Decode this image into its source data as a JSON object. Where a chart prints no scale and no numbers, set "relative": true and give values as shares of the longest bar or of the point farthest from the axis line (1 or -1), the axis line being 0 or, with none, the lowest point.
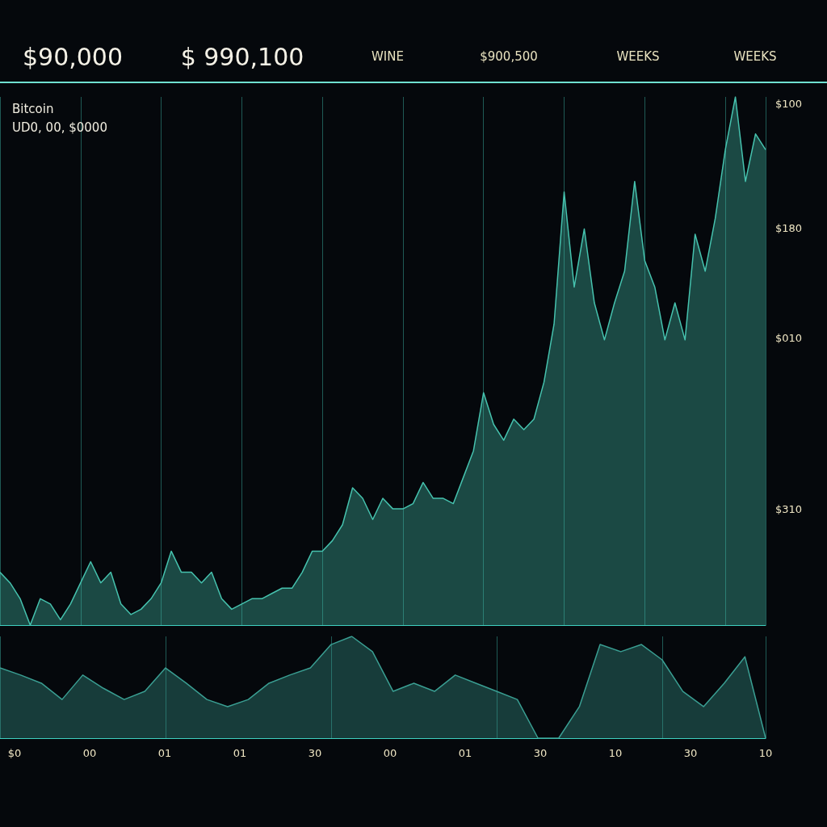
{
  "chart_data": [
    {
      "type": "area",
      "title": "Bitcoin",
      "subtitle": "UD0, 00, $0000",
      "relative": true,
      "grid": "x",
      "annotations": [
        "$90,000",
        "$ 990,100",
        "WINE",
        "$900,500",
        "WEEKS",
        "WEEKS",
        "$100",
        "$180",
        "$010",
        "$310"
      ],
      "categories": [
        null,
        null,
        null,
        null,
        null,
        null,
        null,
        null,
        null,
        null,
        null,
        null,
        null,
        null,
        null,
        null,
        null,
        null,
        null,
        null,
        null,
        null,
        null,
        null,
        null,
        null,
        null,
        null,
        null,
        null,
        null,
        null,
        null,
        null,
        null,
        null,
        null,
        null,
        null,
        null,
        null,
        null,
        null,
        null,
        null,
        null,
        null,
        null,
        null,
        null,
        null,
        null,
        null,
        null,
        null,
        null,
        null,
        null,
        null,
        null,
        null,
        null,
        null,
        null,
        null,
        null,
        null,
        null,
        null,
        null,
        null,
        null,
        null,
        null,
        null,
        null,
        null
      ],
      "series": [
        {
          "color": "#46c2ae",
          "values": [
            0.1,
            0.08,
            0.05,
            0,
            0.05,
            0.04,
            0.01,
            0.04,
            0.08,
            0.12,
            0.08,
            0.1,
            0.04,
            0.02,
            0.03,
            0.05,
            0.08,
            0.14,
            0.1,
            0.1,
            0.08,
            0.1,
            0.05,
            0.03,
            0.04,
            0.05,
            0.05,
            0.06,
            0.07,
            0.07,
            0.1,
            0.14,
            0.14,
            0.16,
            0.19,
            0.26,
            0.24,
            0.2,
            0.24,
            0.22,
            0.22,
            0.23,
            0.27,
            0.24,
            0.24,
            0.23,
            0.28,
            0.33,
            0.44,
            0.38,
            0.35,
            0.39,
            0.37,
            0.39,
            0.46,
            0.57,
            0.82,
            0.64,
            0.75,
            0.61,
            0.54,
            0.61,
            0.67,
            0.84,
            0.69,
            0.64,
            0.54,
            0.61,
            0.54,
            0.74,
            0.67,
            0.77,
            0.9,
            1,
            0.84,
            0.93,
            0.9
          ]
        }
      ]
    },
    {
      "type": "area",
      "relative": true,
      "grid": "x",
      "annotations": [
        "$0",
        "00",
        "01",
        "01",
        "30",
        "00",
        "01",
        "30",
        "10",
        "30",
        "10"
      ],
      "categories": [
        null,
        null,
        null,
        null,
        null,
        null,
        null,
        null,
        null,
        null,
        null,
        null,
        null,
        null,
        null,
        null,
        null,
        null,
        null,
        null,
        null,
        null,
        null,
        null,
        null,
        null,
        null,
        null,
        null,
        null,
        null,
        null,
        null,
        null,
        null,
        null,
        null,
        null
      ],
      "series": [
        {
          "color": "#3a9e92",
          "values": [
            0.69,
            0.62,
            0.54,
            0.38,
            0.62,
            0.49,
            0.38,
            0.46,
            0.69,
            0.54,
            0.38,
            0.31,
            0.38,
            0.54,
            0.62,
            0.69,
            0.92,
            1,
            0.85,
            0.46,
            0.54,
            0.46,
            0.62,
            0.54,
            0.46,
            0.38,
            0,
            0,
            0.31,
            0.92,
            0.85,
            0.92,
            0.77,
            0.46,
            0.31,
            0.54,
            0.8,
            0
          ]
        }
      ]
    }
  ]
}
